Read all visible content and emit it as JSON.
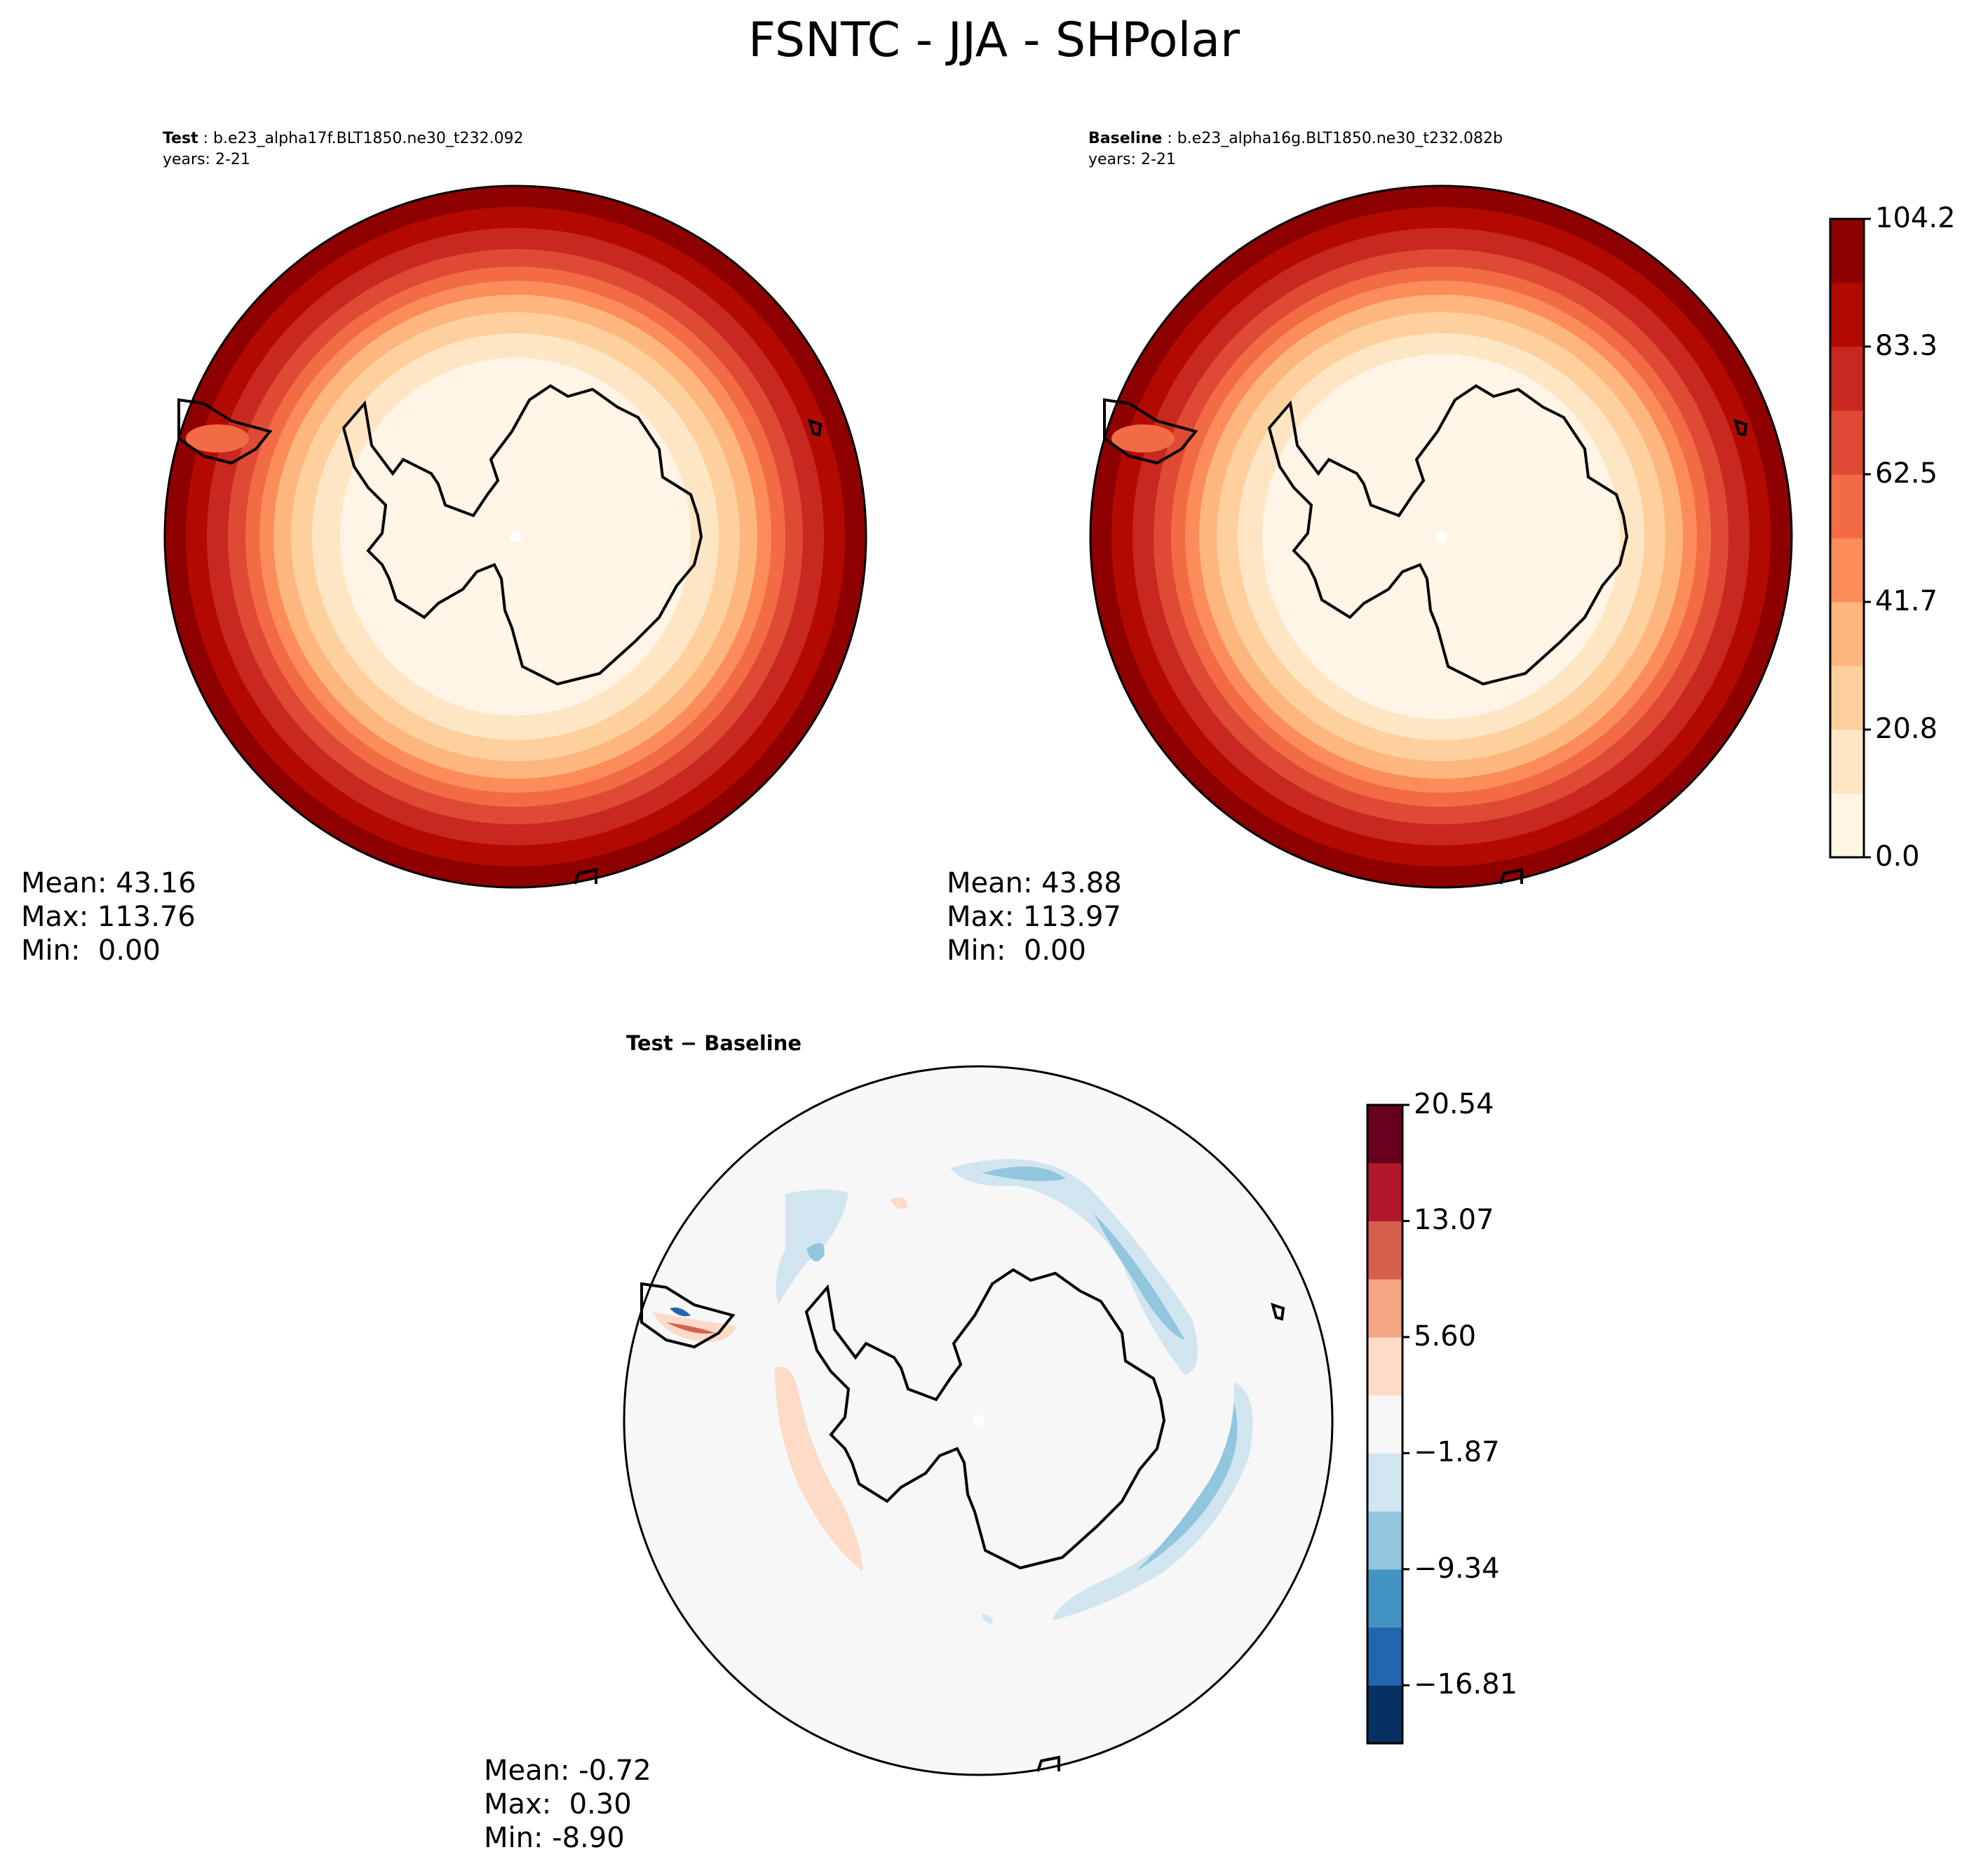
{
  "title": "FSNTC - JJA - SHPolar",
  "panels": {
    "test": {
      "label": "Test",
      "case": "b.e23_alpha17f.BLT1850.ne30_t232.092",
      "years": "years: 2-21",
      "mean": "Mean: 43.16",
      "max": "Max: 113.76",
      "min": "Min:  0.00"
    },
    "baseline": {
      "label": "Baseline",
      "case": "b.e23_alpha16g.BLT1850.ne30_t232.082b",
      "years": "years: 2-21",
      "mean": "Mean: 43.88",
      "max": "Max: 113.97",
      "min": "Min:  0.00"
    },
    "diff": {
      "label": "Test − Baseline",
      "mean": "Mean: -0.72",
      "max": "Max:  0.30",
      "min": "Min: -8.90"
    }
  },
  "colorbar_main": {
    "ticks": [
      "0.0",
      "20.8",
      "41.7",
      "62.5",
      "83.3",
      "104.2"
    ],
    "colors": [
      "#fff5e6",
      "#fee6c4",
      "#fdd09d",
      "#fdb67d",
      "#fc8c59",
      "#f26b45",
      "#de4a34",
      "#c8281f",
      "#b30a00",
      "#8e0000"
    ]
  },
  "colorbar_diff": {
    "ticks": [
      "20.54",
      "13.07",
      "5.60",
      "−1.87",
      "−9.34",
      "−16.81"
    ],
    "colors": [
      "#67001f",
      "#b2182b",
      "#d6604d",
      "#f4a582",
      "#fddbc7",
      "#f7f7f7",
      "#d1e5f0",
      "#92c5de",
      "#4393c3",
      "#2166ac",
      "#053061"
    ]
  }
}
